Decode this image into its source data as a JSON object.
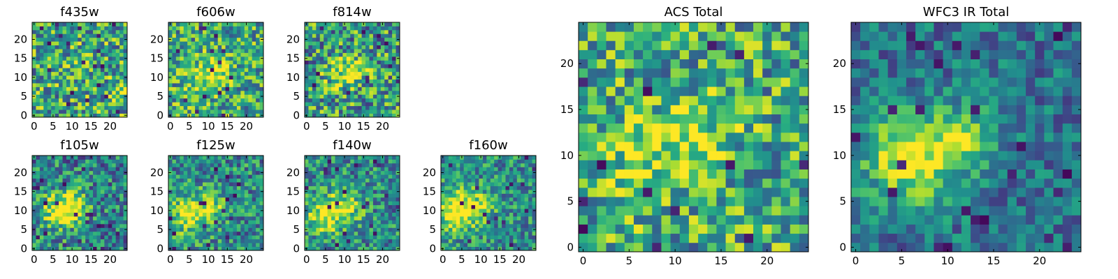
{
  "chart_data": [
    {
      "type": "heatmap",
      "title": "f435w",
      "xticks": [
        "0",
        "5",
        "10",
        "15",
        "20"
      ],
      "yticks": [
        "0",
        "5",
        "10",
        "15",
        "20"
      ],
      "xlim": [
        -0.5,
        24.5
      ],
      "ylim": [
        -0.5,
        24.5
      ],
      "grid": false,
      "colormap": "viridis"
    },
    {
      "type": "heatmap",
      "title": "f606w",
      "xticks": [
        "0",
        "5",
        "10",
        "15",
        "20"
      ],
      "yticks": [
        "0",
        "5",
        "10",
        "15",
        "20"
      ],
      "xlim": [
        -0.5,
        24.5
      ],
      "ylim": [
        -0.5,
        24.5
      ],
      "grid": false,
      "colormap": "viridis"
    },
    {
      "type": "heatmap",
      "title": "f814w",
      "xticks": [
        "0",
        "5",
        "10",
        "15",
        "20"
      ],
      "yticks": [
        "0",
        "5",
        "10",
        "15",
        "20"
      ],
      "xlim": [
        -0.5,
        24.5
      ],
      "ylim": [
        -0.5,
        24.5
      ],
      "grid": false,
      "colormap": "viridis"
    },
    {
      "type": "heatmap",
      "title": "f105w",
      "xticks": [
        "0",
        "5",
        "10",
        "15",
        "20"
      ],
      "yticks": [
        "0",
        "5",
        "10",
        "15",
        "20"
      ],
      "xlim": [
        -0.5,
        24.5
      ],
      "ylim": [
        -0.5,
        24.5
      ],
      "grid": false,
      "colormap": "viridis"
    },
    {
      "type": "heatmap",
      "title": "f125w",
      "xticks": [
        "0",
        "5",
        "10",
        "15",
        "20"
      ],
      "yticks": [
        "0",
        "5",
        "10",
        "15",
        "20"
      ],
      "xlim": [
        -0.5,
        24.5
      ],
      "ylim": [
        -0.5,
        24.5
      ],
      "grid": false,
      "colormap": "viridis"
    },
    {
      "type": "heatmap",
      "title": "f140w",
      "xticks": [
        "0",
        "5",
        "10",
        "15",
        "20"
      ],
      "yticks": [
        "0",
        "5",
        "10",
        "15",
        "20"
      ],
      "xlim": [
        -0.5,
        24.5
      ],
      "ylim": [
        -0.5,
        24.5
      ],
      "grid": false,
      "colormap": "viridis"
    },
    {
      "type": "heatmap",
      "title": "f160w",
      "xticks": [
        "0",
        "5",
        "10",
        "15",
        "20"
      ],
      "yticks": [
        "0",
        "5",
        "10",
        "15",
        "20"
      ],
      "xlim": [
        -0.5,
        24.5
      ],
      "ylim": [
        -0.5,
        24.5
      ],
      "grid": false,
      "colormap": "viridis"
    },
    {
      "type": "heatmap",
      "title": "ACS Total",
      "xticks": [
        "0",
        "5",
        "10",
        "15",
        "20"
      ],
      "yticks": [
        "0",
        "5",
        "10",
        "15",
        "20"
      ],
      "xlim": [
        -0.5,
        24.5
      ],
      "ylim": [
        -0.5,
        24.5
      ],
      "grid": false,
      "colormap": "viridis"
    },
    {
      "type": "heatmap",
      "title": "WFC3 IR Total",
      "xticks": [
        "0",
        "5",
        "10",
        "15",
        "20"
      ],
      "yticks": [
        "0",
        "5",
        "10",
        "15",
        "20"
      ],
      "xlim": [
        -0.5,
        24.5
      ],
      "ylim": [
        -0.5,
        24.5
      ],
      "grid": false,
      "colormap": "viridis"
    }
  ],
  "colors": {
    "viridis": [
      "#440154",
      "#472c7a",
      "#3b518b",
      "#2c718e",
      "#21908d",
      "#27ad81",
      "#5cc863",
      "#aadc32",
      "#fde725"
    ]
  }
}
